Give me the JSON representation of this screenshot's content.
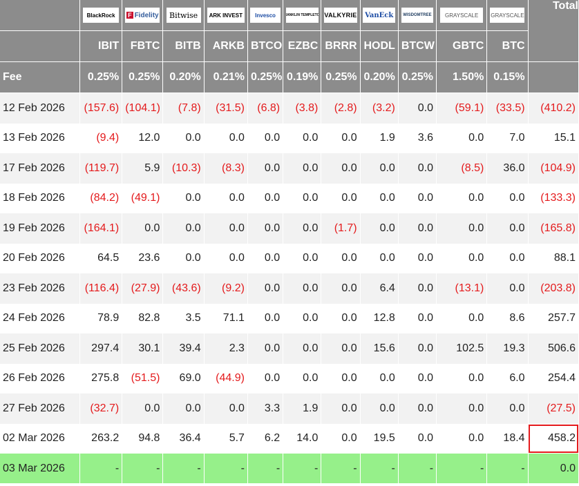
{
  "providers": [
    {
      "name": "",
      "logo": "BlackRock",
      "logo_icon": "blackrock-logo"
    },
    {
      "name": "",
      "logo": "Fidelity",
      "logo_icon": "fidelity-logo"
    },
    {
      "name": "",
      "logo": "Bitwise",
      "logo_icon": "bitwise-logo"
    },
    {
      "name": "",
      "logo": "ARK INVEST",
      "logo_icon": "ark-logo"
    },
    {
      "name": "",
      "logo": "Invesco",
      "logo_icon": "invesco-logo"
    },
    {
      "name": "",
      "logo": "FRANKLIN TEMPLETON",
      "logo_icon": "franklin-logo"
    },
    {
      "name": "",
      "logo": "VALKYRIE",
      "logo_icon": "valkyrie-logo"
    },
    {
      "name": "",
      "logo": "VanEck",
      "logo_icon": "vaneck-logo"
    },
    {
      "name": "",
      "logo": "WISDOMTREE",
      "logo_icon": "wisdomtree-logo"
    },
    {
      "name": "",
      "logo": "GRAYSCALE",
      "logo_icon": "grayscale-logo"
    },
    {
      "name": "",
      "logo": "GRAYSCALE",
      "logo_icon": "grayscale-logo"
    }
  ],
  "header": {
    "total_label": "Total",
    "tickers": [
      "IBIT",
      "FBTC",
      "BITB",
      "ARKB",
      "BTCO",
      "EZBC",
      "BRRR",
      "HODL",
      "BTCW",
      "GBTC",
      "BTC"
    ],
    "fee_label": "Fee",
    "fees": [
      "0.25%",
      "0.25%",
      "0.20%",
      "0.21%",
      "0.25%",
      "0.19%",
      "0.25%",
      "0.20%",
      "0.25%",
      "1.50%",
      "0.15%"
    ]
  },
  "rows": [
    {
      "date": "12 Feb 2026",
      "values": [
        "(157.6)",
        "(104.1)",
        "(7.8)",
        "(31.5)",
        "(6.8)",
        "(3.8)",
        "(2.8)",
        "(3.2)",
        "0.0",
        "(59.1)",
        "(33.5)"
      ],
      "total": "(410.2)"
    },
    {
      "date": "13 Feb 2026",
      "values": [
        "(9.4)",
        "12.0",
        "0.0",
        "0.0",
        "0.0",
        "0.0",
        "0.0",
        "1.9",
        "3.6",
        "0.0",
        "7.0"
      ],
      "total": "15.1"
    },
    {
      "date": "17 Feb 2026",
      "values": [
        "(119.7)",
        "5.9",
        "(10.3)",
        "(8.3)",
        "0.0",
        "0.0",
        "0.0",
        "0.0",
        "0.0",
        "(8.5)",
        "36.0"
      ],
      "total": "(104.9)"
    },
    {
      "date": "18 Feb 2026",
      "values": [
        "(84.2)",
        "(49.1)",
        "0.0",
        "0.0",
        "0.0",
        "0.0",
        "0.0",
        "0.0",
        "0.0",
        "0.0",
        "0.0"
      ],
      "total": "(133.3)"
    },
    {
      "date": "19 Feb 2026",
      "values": [
        "(164.1)",
        "0.0",
        "0.0",
        "0.0",
        "0.0",
        "0.0",
        "(1.7)",
        "0.0",
        "0.0",
        "0.0",
        "0.0"
      ],
      "total": "(165.8)"
    },
    {
      "date": "20 Feb 2026",
      "values": [
        "64.5",
        "23.6",
        "0.0",
        "0.0",
        "0.0",
        "0.0",
        "0.0",
        "0.0",
        "0.0",
        "0.0",
        "0.0"
      ],
      "total": "88.1"
    },
    {
      "date": "23 Feb 2026",
      "values": [
        "(116.4)",
        "(27.9)",
        "(43.6)",
        "(9.2)",
        "0.0",
        "0.0",
        "0.0",
        "6.4",
        "0.0",
        "(13.1)",
        "0.0"
      ],
      "total": "(203.8)"
    },
    {
      "date": "24 Feb 2026",
      "values": [
        "78.9",
        "82.8",
        "3.5",
        "71.1",
        "0.0",
        "0.0",
        "0.0",
        "12.8",
        "0.0",
        "0.0",
        "8.6"
      ],
      "total": "257.7"
    },
    {
      "date": "25 Feb 2026",
      "values": [
        "297.4",
        "30.1",
        "39.4",
        "2.3",
        "0.0",
        "0.0",
        "0.0",
        "15.6",
        "0.0",
        "102.5",
        "19.3"
      ],
      "total": "506.6"
    },
    {
      "date": "26 Feb 2026",
      "values": [
        "275.8",
        "(51.5)",
        "69.0",
        "(44.9)",
        "0.0",
        "0.0",
        "0.0",
        "0.0",
        "0.0",
        "0.0",
        "6.0"
      ],
      "total": "254.4"
    },
    {
      "date": "27 Feb 2026",
      "values": [
        "(32.7)",
        "0.0",
        "0.0",
        "0.0",
        "3.3",
        "1.9",
        "0.0",
        "0.0",
        "0.0",
        "0.0",
        "0.0"
      ],
      "total": "(27.5)"
    },
    {
      "date": "02 Mar 2026",
      "values": [
        "263.2",
        "94.8",
        "36.4",
        "5.7",
        "6.2",
        "14.0",
        "0.0",
        "19.5",
        "0.0",
        "0.0",
        "18.4"
      ],
      "total": "458.2",
      "total_highlighted": true
    },
    {
      "date": "03 Mar 2026",
      "values": [
        "-",
        "-",
        "-",
        "-",
        "-",
        "-",
        "-",
        "-",
        "-",
        "-",
        "-"
      ],
      "total": "0.0",
      "today": true
    }
  ],
  "colors": {
    "header_bg": "#8c8c8c",
    "negative": "#e41a1c",
    "today_row": "#96f08a",
    "highlight_border": "#e41a1c",
    "stripe": "#f2f2f2"
  }
}
